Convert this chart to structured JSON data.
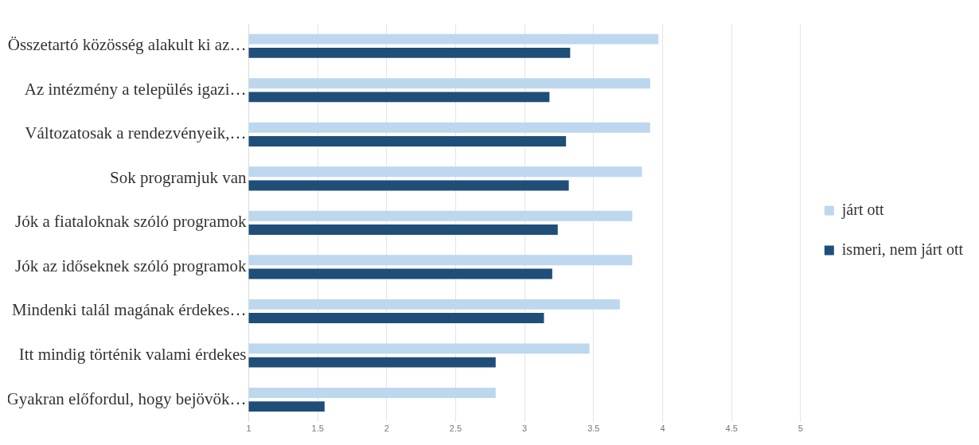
{
  "chart_data": {
    "type": "bar",
    "orientation": "horizontal",
    "categories": [
      "Összetartó közösség alakult ki az…",
      "Az intézmény a település igazi…",
      "Változatosak a rendezvényeik,…",
      "Sok programjuk van",
      "Jók a fiataloknak szóló programok",
      "Jók az időseknek szóló programok",
      "Mindenki talál magának érdekes…",
      "Itt mindig történik valami érdekes",
      "Gyakran előfordul, hogy bejövök…"
    ],
    "series": [
      {
        "name": "járt ott",
        "color": "#bdd7ee",
        "values": [
          3.97,
          3.91,
          3.91,
          3.85,
          3.78,
          3.78,
          3.69,
          3.47,
          2.79
        ]
      },
      {
        "name": "ismeri, nem járt ott",
        "color": "#1f4e79",
        "values": [
          3.33,
          3.18,
          3.3,
          3.32,
          3.24,
          3.2,
          3.14,
          2.79,
          1.55
        ]
      }
    ],
    "xlim": [
      1,
      5
    ],
    "xticks": [
      1,
      1.5,
      2,
      2.5,
      3,
      3.5,
      4,
      4.5,
      5
    ],
    "grid": "x",
    "legend": "right"
  }
}
